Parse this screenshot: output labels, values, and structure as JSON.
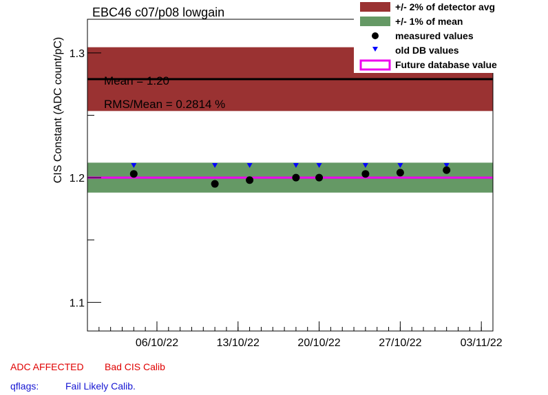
{
  "chart_data": {
    "type": "scatter",
    "title": "EBC46 c07/p08 lowgain",
    "xlabel": "",
    "ylabel": "CIS Constant (ADC count/pC)",
    "x_ticks": [
      "06/10/22",
      "13/10/22",
      "20/10/22",
      "27/10/22",
      "03/11/22"
    ],
    "y_ticks": [
      "1.1",
      "1.2",
      "1.3"
    ],
    "ylim": [
      1.077,
      1.327
    ],
    "xlim": [
      "2022-09-30",
      "2022-11-04"
    ],
    "detector_avg": 1.279,
    "band_detector_pct": 2,
    "mean": 1.2,
    "band_mean_pct": 1,
    "future_db_value": 1.2,
    "series": [
      {
        "name": "measured values",
        "x": [
          "2022-10-04",
          "2022-10-11",
          "2022-10-14",
          "2022-10-18",
          "2022-10-20",
          "2022-10-24",
          "2022-10-27",
          "2022-10-31"
        ],
        "values": [
          1.203,
          1.195,
          1.198,
          1.2,
          1.2,
          1.203,
          1.204,
          1.206
        ]
      },
      {
        "name": "old DB values",
        "x": [
          "2022-10-04",
          "2022-10-11",
          "2022-10-14",
          "2022-10-18",
          "2022-10-20",
          "2022-10-24",
          "2022-10-27",
          "2022-10-31"
        ],
        "values": [
          1.21,
          1.21,
          1.21,
          1.21,
          1.21,
          1.21,
          1.21,
          1.21
        ]
      }
    ],
    "annotations": [
      "Mean = 1.20",
      "RMS/Mean = 0.2814 %"
    ],
    "legend": {
      "placement": "top-right",
      "entries": [
        "+/- 2% of detector avg",
        "+/- 1% of mean",
        "measured values",
        "old DB values",
        "Future database value"
      ]
    },
    "grid": false
  },
  "footer": {
    "status_label": "ADC AFFECTED",
    "status_value": "Bad CIS Calib",
    "qflags_label": "qflags:",
    "qflags_value": "Fail Likely Calib."
  },
  "colors": {
    "detector_band": "#9a3232",
    "mean_band": "#659965",
    "future_line": "#ee00ee",
    "old_db_marker": "#0000ff",
    "measured_marker": "#000000",
    "footer_red": "#e00000",
    "footer_blue": "#1414d2"
  }
}
